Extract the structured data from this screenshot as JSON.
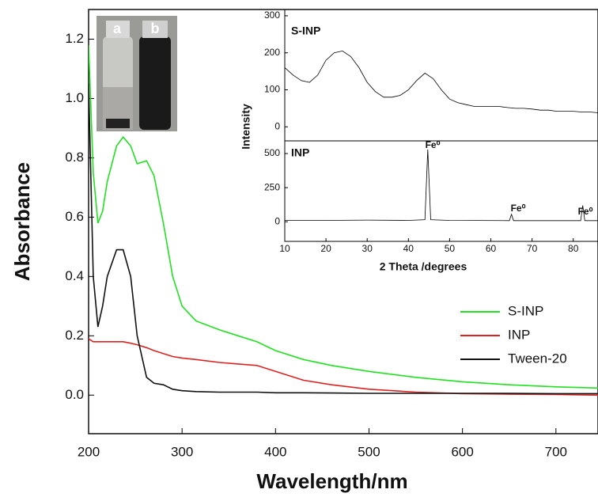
{
  "photo": {
    "labels": [
      "a",
      "b"
    ]
  },
  "chart_data": [
    {
      "type": "line",
      "xlabel": "Wavelength/nm",
      "ylabel": "Absorbance",
      "x": [
        200,
        205,
        210,
        215,
        220,
        230,
        237,
        245,
        252,
        262,
        270,
        280,
        290,
        300,
        315,
        340,
        360,
        380,
        400,
        430,
        460,
        500,
        550,
        600,
        650,
        700,
        745
      ],
      "series": [
        {
          "name": "S-INP",
          "color": "#22e022",
          "values": [
            1.18,
            0.75,
            0.58,
            0.62,
            0.72,
            0.84,
            0.87,
            0.84,
            0.78,
            0.79,
            0.74,
            0.58,
            0.4,
            0.3,
            0.25,
            0.22,
            0.2,
            0.18,
            0.15,
            0.12,
            0.1,
            0.08,
            0.06,
            0.045,
            0.035,
            0.028,
            0.024
          ]
        },
        {
          "name": "INP",
          "color": "#dd2222",
          "values": [
            0.19,
            0.18,
            0.18,
            0.18,
            0.18,
            0.18,
            0.18,
            0.175,
            0.17,
            0.16,
            0.15,
            0.14,
            0.13,
            0.125,
            0.12,
            0.11,
            0.105,
            0.1,
            0.08,
            0.05,
            0.035,
            0.02,
            0.01,
            0.005,
            0.003,
            0.002,
            0.0
          ]
        },
        {
          "name": "Tween-20",
          "color": "#111111",
          "values": [
            1.05,
            0.4,
            0.23,
            0.3,
            0.4,
            0.49,
            0.49,
            0.4,
            0.2,
            0.06,
            0.04,
            0.035,
            0.02,
            0.015,
            0.012,
            0.01,
            0.01,
            0.01,
            0.008,
            0.008,
            0.007,
            0.006,
            0.006,
            0.006,
            0.006,
            0.005,
            0.005
          ]
        }
      ],
      "xlim": [
        200,
        745
      ],
      "ylim": [
        -0.13,
        1.3
      ],
      "xticks": [
        200,
        300,
        400,
        500,
        600,
        700
      ],
      "yticks": [
        {
          "value": 0,
          "label": "0.0"
        },
        {
          "value": 0.2,
          "label": "0.2"
        },
        {
          "value": 0.4,
          "label": "0.4"
        },
        {
          "value": 0.6,
          "label": "0.6"
        },
        {
          "value": 0.8,
          "label": "0.8"
        },
        {
          "value": 1,
          "label": "1.0"
        },
        {
          "value": 1.2,
          "label": "1.2"
        }
      ],
      "legend": "lower right"
    },
    {
      "type": "line",
      "label": "S-INP",
      "ylabel": "Intensity",
      "x": [
        10,
        12,
        14,
        16,
        18,
        20,
        22,
        24,
        26,
        28,
        30,
        32,
        34,
        36,
        38,
        40,
        42,
        44,
        46,
        48,
        50,
        52,
        54,
        56,
        58,
        60,
        62,
        64,
        66,
        68,
        70,
        72,
        74,
        76,
        78,
        80,
        82,
        84,
        86
      ],
      "series": [
        {
          "name": "S-INP",
          "color": "#000000",
          "values": [
            160,
            140,
            125,
            120,
            140,
            180,
            200,
            205,
            190,
            160,
            120,
            95,
            80,
            80,
            85,
            100,
            125,
            145,
            130,
            100,
            75,
            65,
            60,
            55,
            55,
            55,
            55,
            52,
            50,
            50,
            48,
            45,
            45,
            42,
            42,
            42,
            40,
            40,
            38
          ]
        }
      ],
      "xlim": [
        10,
        86
      ],
      "ylim": [
        -38,
        317
      ],
      "yticks": [
        0,
        100,
        200,
        300
      ]
    },
    {
      "type": "line",
      "label": "INP",
      "xlabel": "2 Theta /degrees",
      "x": [
        10,
        20,
        30,
        40,
        44,
        44.7,
        45.4,
        50,
        64.5,
        65,
        65.5,
        80,
        81.8,
        82.3,
        82.8,
        86
      ],
      "series": [
        {
          "name": "INP",
          "color": "#000000",
          "values": [
            10,
            10,
            12,
            10,
            15,
            530,
            15,
            10,
            8,
            55,
            8,
            8,
            8,
            120,
            8,
            8
          ]
        }
      ],
      "annotations": [
        "Fe⁰",
        "Fe⁰",
        "Fe⁰"
      ],
      "xlim": [
        10,
        86
      ],
      "ylim": [
        -144,
        593
      ],
      "xticks": [
        10,
        20,
        30,
        40,
        50,
        60,
        70,
        80
      ],
      "yticks": [
        0,
        250,
        500
      ]
    }
  ]
}
